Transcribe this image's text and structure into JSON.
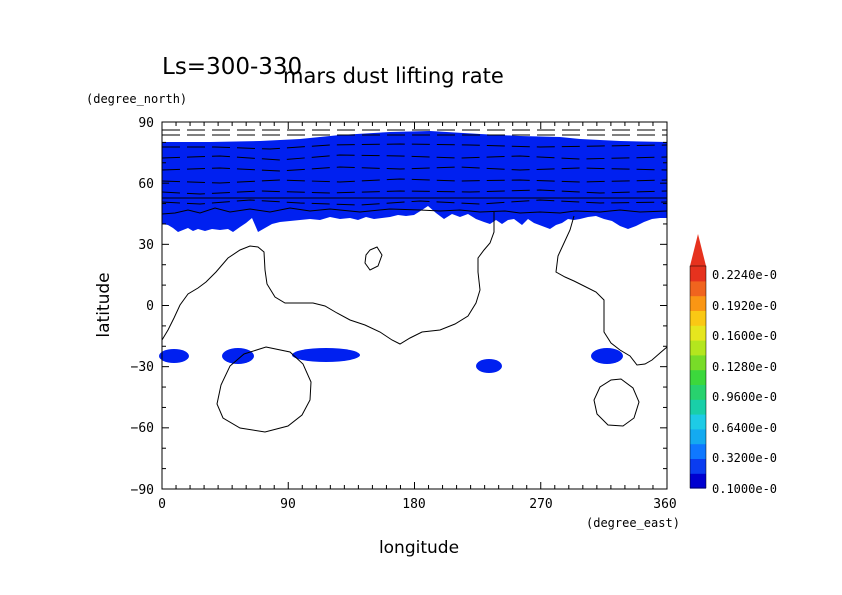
{
  "chart_data": {
    "type": "heatmap",
    "title": "mars dust lifting rate",
    "subtitle": "Ls=300-330",
    "xlabel": "longitude",
    "ylabel": "latitude",
    "xunit": "(degree_east)",
    "yunit": "(degree_north)",
    "xlim": [
      0,
      360
    ],
    "ylim": [
      -90,
      90
    ],
    "xticks": [
      "0",
      "90",
      "180",
      "270",
      "360"
    ],
    "yticks": [
      "90",
      "60",
      "30",
      "0",
      "−30",
      "−60",
      "−90"
    ],
    "colorbar_labels": [
      "0.1000e-0",
      "0.3200e-0",
      "0.6400e-0",
      "0.9600e-0",
      "0.1280e-0",
      "0.1600e-0",
      "0.1920e-0",
      "0.2240e-0"
    ],
    "colors": {
      "fill": "#0020f0",
      "scale": [
        "#0000d0",
        "#0a3cf0",
        "#0f78ff",
        "#14aaf0",
        "#1ecbe6",
        "#19cfa8",
        "#28d26e",
        "#3cd83c",
        "#78dc28",
        "#b4e61e",
        "#e6e61e",
        "#fac814",
        "#fa9614",
        "#f0641e",
        "#e6321e"
      ]
    }
  }
}
